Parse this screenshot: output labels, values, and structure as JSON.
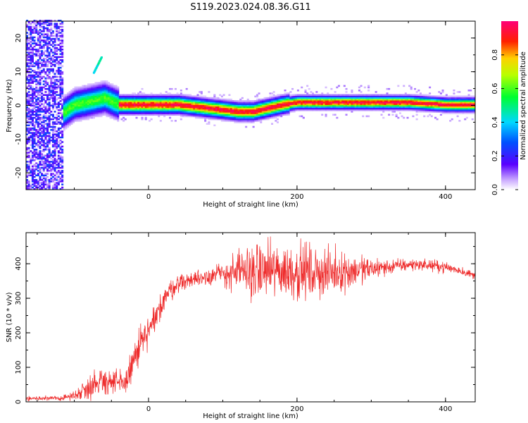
{
  "figure": {
    "title": "S119.2023.024.08.36.G11"
  },
  "colors": {
    "snr_line": "#ee2a2a",
    "axis": "#000000"
  },
  "chart_data": [
    {
      "type": "heatmap",
      "title": "S119.2023.024.08.36.G11",
      "xlabel": "Height of straight line (km)",
      "ylabel": "Frequency (Hz)",
      "xlim": [
        -165,
        440
      ],
      "ylim": [
        -25,
        25
      ],
      "xticks": [
        0,
        200,
        400
      ],
      "yticks": [
        -20,
        -10,
        0,
        10,
        20
      ],
      "colorbar": {
        "label": "Normalized spectral amplitude",
        "range": [
          0,
          1
        ],
        "ticks": [
          0.0,
          0.2,
          0.4,
          0.6,
          0.8
        ],
        "tick_labels": [
          "0.0",
          "0.2",
          "0.4",
          "0.6",
          "0.8"
        ]
      },
      "ridge": {
        "x": [
          -120,
          -100,
          -80,
          -60,
          -40,
          -20,
          0,
          20,
          40,
          60,
          80,
          100,
          120,
          140,
          160,
          180,
          200,
          250,
          300,
          350,
          400,
          440
        ],
        "freq": [
          -3,
          0,
          1,
          2,
          0,
          0,
          0,
          0,
          0,
          -0.5,
          -1,
          -1.5,
          -2,
          -2,
          -1,
          0,
          0.7,
          0.7,
          0.7,
          0.7,
          0,
          0
        ]
      }
    },
    {
      "type": "line",
      "xlabel": "Height of straight line (km)",
      "ylabel": "SNR (10 * v/v)",
      "xlim": [
        -165,
        440
      ],
      "ylim": [
        0,
        490
      ],
      "xticks": [
        0,
        200,
        400
      ],
      "yticks": [
        0,
        100,
        200,
        300,
        400
      ],
      "series": [
        {
          "name": "SNR",
          "envelope_x": [
            -165,
            -120,
            -100,
            -80,
            -60,
            -40,
            -30,
            -20,
            -10,
            0,
            10,
            20,
            40,
            60,
            80,
            100,
            120,
            140,
            160,
            180,
            200,
            220,
            240,
            260,
            280,
            300,
            320,
            340,
            360,
            380,
            400,
            420,
            440
          ],
          "mean": [
            10,
            10,
            18,
            45,
            65,
            50,
            60,
            120,
            170,
            200,
            240,
            300,
            345,
            355,
            365,
            370,
            375,
            378,
            380,
            378,
            378,
            376,
            375,
            378,
            380,
            385,
            390,
            395,
            398,
            395,
            390,
            380,
            365
          ],
          "spread": [
            6,
            6,
            12,
            35,
            40,
            35,
            35,
            50,
            50,
            45,
            40,
            35,
            22,
            22,
            25,
            35,
            55,
            70,
            75,
            75,
            75,
            70,
            60,
            55,
            45,
            30,
            22,
            18,
            15,
            15,
            15,
            12,
            10
          ]
        }
      ]
    }
  ]
}
